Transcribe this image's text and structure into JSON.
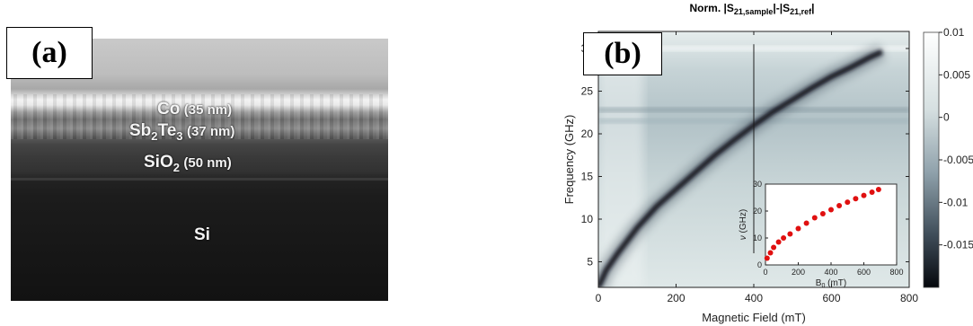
{
  "panel_a": {
    "tag": "(a)",
    "layers": [
      {
        "name": "Co",
        "thickness": "(35 nm)"
      },
      {
        "name_main": "Sb",
        "name_sub1": "2",
        "name_mid": "Te",
        "name_sub2": "3",
        "thickness": "(37 nm)"
      },
      {
        "name_main": "SiO",
        "name_sub1": "2",
        "thickness": "(50 nm)"
      },
      {
        "name": "Si"
      }
    ]
  },
  "panel_b": {
    "tag": "(b)",
    "title_main": "Norm. |S",
    "title_sub1": "21,sample",
    "title_mid": "|-|S",
    "title_sub2": "21,ref",
    "title_end": "|",
    "colorbar_ticks": [
      "0.01",
      "0.005",
      "0",
      "-0.005",
      "-0.01",
      "-0.015"
    ]
  },
  "chart_data": [
    {
      "type": "heatmap",
      "xlabel": "Magnetic Field (mT)",
      "ylabel": "Frequency (GHz)",
      "xlim": [
        0,
        800
      ],
      "ylim": [
        2,
        32
      ],
      "xticks": [
        0,
        200,
        400,
        600,
        800
      ],
      "yticks": [
        5,
        10,
        15,
        20,
        25,
        30
      ],
      "colorbar_range": [
        -0.02,
        0.01
      ],
      "colorbar_ticks": [
        0.01,
        0.005,
        0,
        -0.005,
        -0.01,
        -0.015
      ],
      "resonance_curve": {
        "x": [
          0,
          20,
          50,
          100,
          150,
          200,
          250,
          300,
          350,
          400,
          450,
          500,
          550,
          600,
          650,
          700,
          730
        ],
        "y": [
          2,
          4,
          6,
          9,
          11.5,
          13.5,
          15.5,
          17.5,
          19.3,
          21,
          22.6,
          24,
          25.4,
          26.7,
          27.8,
          29,
          29.6
        ]
      },
      "colors": {
        "dark": "#10141c",
        "mid": "#6b7d88",
        "light": "#f2f5f5"
      }
    },
    {
      "type": "scatter",
      "xlabel_main": "B",
      "xlabel_sub": "0",
      "xlabel_end": " (mT)",
      "ylabel_main": "ν",
      "ylabel_end": " (GHz)",
      "xlim": [
        0,
        800
      ],
      "ylim": [
        0,
        30
      ],
      "xticks": [
        0,
        200,
        400,
        600,
        800
      ],
      "yticks": [
        0,
        10,
        20,
        30
      ],
      "x": [
        10,
        30,
        50,
        80,
        110,
        150,
        200,
        250,
        300,
        350,
        400,
        450,
        500,
        550,
        600,
        650,
        690
      ],
      "y": [
        2.5,
        4.5,
        6.5,
        8.5,
        10,
        11.5,
        13.5,
        15.5,
        17.5,
        19,
        20.5,
        22,
        23.3,
        24.6,
        25.8,
        27,
        28
      ],
      "color": "#e01010"
    }
  ]
}
